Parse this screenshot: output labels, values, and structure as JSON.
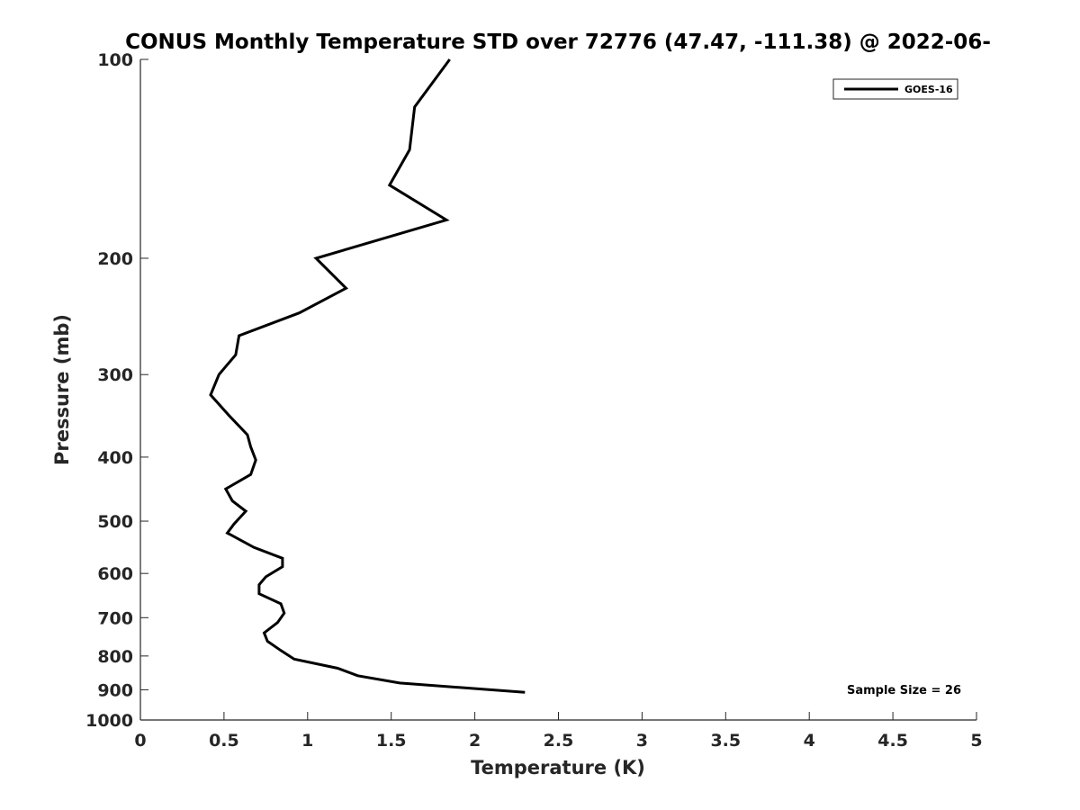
{
  "chart_data": {
    "type": "line",
    "title": "CONUS Monthly Temperature STD over 72776 (47.47, -111.38) @ 2022-06-",
    "xlabel": "Temperature (K)",
    "ylabel": "Pressure (mb)",
    "xlim": [
      0,
      5
    ],
    "ylim": [
      100,
      1000
    ],
    "yscale": "log",
    "y_reversed": true,
    "grid": false,
    "legend_position": "top-right",
    "x_ticks": [
      "0",
      "0.5",
      "1",
      "1.5",
      "2",
      "2.5",
      "3",
      "3.5",
      "4",
      "4.5",
      "5"
    ],
    "y_ticks": [
      "100",
      "200",
      "300",
      "400",
      "500",
      "600",
      "700",
      "800",
      "900",
      "1000"
    ],
    "series": [
      {
        "name": "GOES-16",
        "color": "#000000",
        "x": [
          1.85,
          1.64,
          1.61,
          1.49,
          1.83,
          1.05,
          1.23,
          0.95,
          0.59,
          0.57,
          0.47,
          0.42,
          0.53,
          0.64,
          0.66,
          0.69,
          0.66,
          0.51,
          0.55,
          0.63,
          0.56,
          0.52,
          0.68,
          0.85,
          0.85,
          0.75,
          0.71,
          0.71,
          0.84,
          0.86,
          0.82,
          0.74,
          0.76,
          0.84,
          0.92,
          1.18,
          1.3,
          1.55,
          2.3
        ],
        "y": [
          100,
          118,
          137,
          155,
          175,
          200,
          222,
          242,
          262,
          280,
          300,
          322,
          346,
          370,
          386,
          404,
          425,
          447,
          466,
          483,
          505,
          521,
          548,
          569,
          586,
          607,
          624,
          644,
          667,
          689,
          712,
          738,
          760,
          785,
          809,
          835,
          857,
          879,
          908
        ]
      }
    ],
    "annotation": "Sample Size = 26"
  }
}
